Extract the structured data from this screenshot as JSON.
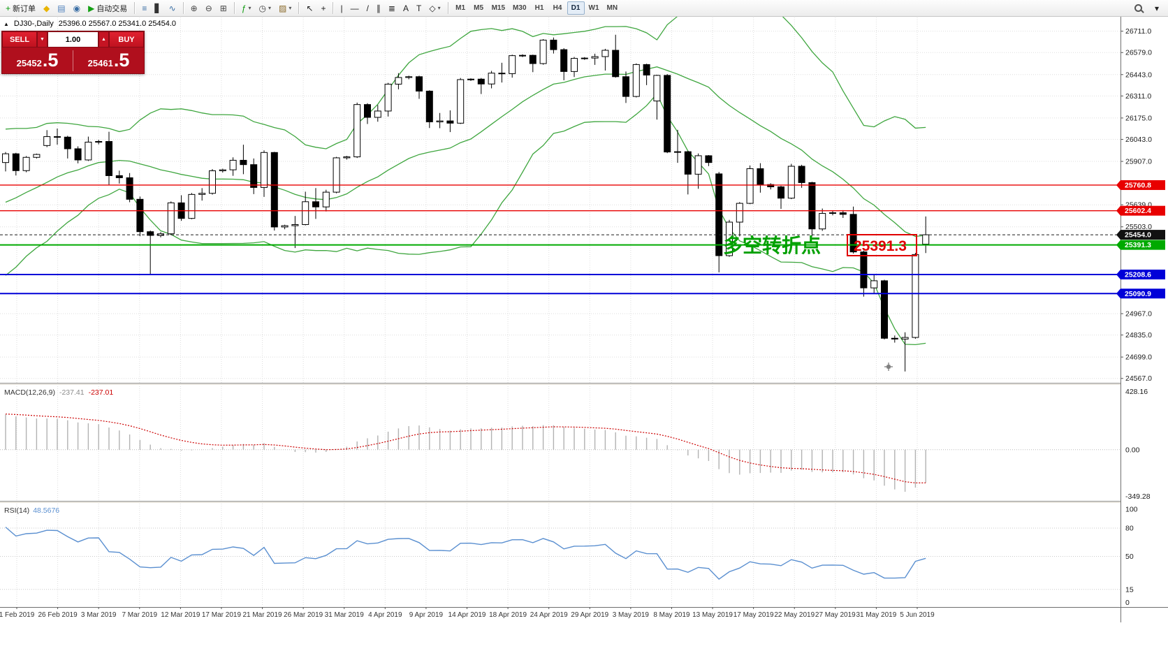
{
  "toolbar": {
    "items": [
      {
        "type": "button",
        "name": "new-order",
        "glyph": "+",
        "color": "#0a9a0a",
        "label": "新订单"
      },
      {
        "type": "button",
        "name": "favorites",
        "glyph": "◆",
        "color": "#e8b400"
      },
      {
        "type": "button",
        "name": "profiles",
        "glyph": "▤",
        "color": "#4a7ebb"
      },
      {
        "type": "button",
        "name": "refresh",
        "glyph": "◉",
        "color": "#3a6ea5"
      },
      {
        "type": "button",
        "name": "autotrading",
        "glyph": "▶",
        "color": "#14a014",
        "label": "自动交易"
      },
      {
        "type": "sep"
      },
      {
        "type": "button",
        "name": "bar-chart-mode",
        "glyph": "≡",
        "color": "#3a6ea5"
      },
      {
        "type": "button",
        "name": "candlestick-mode",
        "glyph": "▋",
        "color": "#333333"
      },
      {
        "type": "button",
        "name": "line-chart-mode",
        "glyph": "∿",
        "color": "#3a6ea5"
      },
      {
        "type": "sep"
      },
      {
        "type": "button",
        "name": "zoom-in",
        "glyph": "⊕",
        "color": "#444444"
      },
      {
        "type": "button",
        "name": "zoom-out",
        "glyph": "⊖",
        "color": "#444444"
      },
      {
        "type": "button",
        "name": "tile-windows",
        "glyph": "⊞",
        "color": "#444444"
      },
      {
        "type": "sep"
      },
      {
        "type": "button",
        "name": "indicators",
        "glyph": "ƒ",
        "color": "#0a9a0a",
        "caret": true
      },
      {
        "type": "button",
        "name": "periods",
        "glyph": "◷",
        "color": "#444444",
        "caret": true
      },
      {
        "type": "button",
        "name": "templates",
        "glyph": "▨",
        "color": "#8a6a2a",
        "caret": true
      },
      {
        "type": "sep"
      },
      {
        "type": "button",
        "name": "cursor",
        "glyph": "↖",
        "color": "#222222"
      },
      {
        "type": "button",
        "name": "crosshair",
        "glyph": "+",
        "color": "#222222"
      },
      {
        "type": "sep"
      },
      {
        "type": "button",
        "name": "vertical-line-tool",
        "glyph": "|",
        "color": "#222222"
      },
      {
        "type": "button",
        "name": "horizontal-line-tool",
        "glyph": "—",
        "color": "#222222"
      },
      {
        "type": "button",
        "name": "trendline-tool",
        "glyph": "/",
        "color": "#222222"
      },
      {
        "type": "button",
        "name": "equidistant-channel-tool",
        "glyph": "∥",
        "color": "#222222"
      },
      {
        "type": "button",
        "name": "fibonacci-tool",
        "glyph": "≣",
        "color": "#222222"
      },
      {
        "type": "button",
        "name": "text-tool",
        "glyph": "A",
        "color": "#222222"
      },
      {
        "type": "button",
        "name": "text-label-tool",
        "glyph": "T",
        "color": "#222222"
      },
      {
        "type": "button",
        "name": "shapes-tool",
        "glyph": "◇",
        "color": "#222222",
        "caret": true
      },
      {
        "type": "sep"
      }
    ],
    "timeframes": [
      "M1",
      "M5",
      "M15",
      "M30",
      "H1",
      "H4",
      "D1",
      "W1",
      "MN"
    ],
    "active_timeframe": "D1",
    "right_items": [
      {
        "name": "search",
        "kind": "magnifier"
      },
      {
        "name": "quick-lists",
        "kind": "glyph",
        "glyph": "▾"
      }
    ]
  },
  "one_click": {
    "collapse_arrow": "▲",
    "sell_label": "SELL",
    "buy_label": "BUY",
    "volume": "1.00",
    "volume_down_glyph": "▼",
    "volume_up_glyph": "▲",
    "sell_price_main": "25452",
    "sell_price_big": ".5",
    "buy_price_main": "25461",
    "buy_price_big": ".5"
  },
  "chart_data": {
    "type": "candlestick",
    "symbol_title": "DJ30-,Daily",
    "ohlc_line": "25396.0 25567.0 25341.0 25454.0",
    "price_axis": {
      "view_max": 26800,
      "view_min": 24540,
      "ticks": [
        26711.0,
        26579.0,
        26443.0,
        26311.0,
        26175.0,
        26043.0,
        25907.0,
        25639.0,
        25503.0,
        24967.0,
        24835.0,
        24699.0,
        24567.0
      ]
    },
    "time_axis": [
      "1 Feb 2019",
      "26 Feb 2019",
      "3 Mar 2019",
      "7 Mar 2019",
      "12 Mar 2019",
      "17 Mar 2019",
      "21 Mar 2019",
      "26 Mar 2019",
      "31 Mar 2019",
      "4 Apr 2019",
      "9 Apr 2019",
      "14 Apr 2019",
      "18 Apr 2019",
      "24 Apr 2019",
      "29 Apr 2019",
      "3 May 2019",
      "8 May 2019",
      "13 May 2019",
      "17 May 2019",
      "22 May 2019",
      "27 May 2019",
      "31 May 2019",
      "5 Jun 2019"
    ],
    "candles": [
      [
        25900,
        25965,
        25845,
        25954
      ],
      [
        25954,
        25960,
        25820,
        25850
      ],
      [
        25850,
        25940,
        25840,
        25932
      ],
      [
        25932,
        25955,
        25925,
        25950
      ],
      [
        26005,
        26100,
        25995,
        26060
      ],
      [
        26060,
        26110,
        26010,
        26057
      ],
      [
        26057,
        26065,
        25925,
        25985
      ],
      [
        25985,
        26000,
        25895,
        25916
      ],
      [
        25916,
        26060,
        25910,
        26026
      ],
      [
        26026,
        26040,
        26012,
        26030
      ],
      [
        26030,
        26090,
        25760,
        25819
      ],
      [
        25819,
        25850,
        25770,
        25806
      ],
      [
        25806,
        25835,
        25655,
        25673
      ],
      [
        25673,
        25690,
        25445,
        25473
      ],
      [
        25473,
        25480,
        25209,
        25450
      ],
      [
        25450,
        25470,
        25438,
        25460
      ],
      [
        25460,
        25660,
        25452,
        25651
      ],
      [
        25651,
        25698,
        25540,
        25555
      ],
      [
        25555,
        25712,
        25550,
        25703
      ],
      [
        25703,
        25742,
        25665,
        25710
      ],
      [
        25710,
        25860,
        25702,
        25849
      ],
      [
        25849,
        25862,
        25838,
        25855
      ],
      [
        25855,
        25932,
        25818,
        25914
      ],
      [
        25914,
        26010,
        25828,
        25887
      ],
      [
        25887,
        25925,
        25705,
        25746
      ],
      [
        25746,
        25975,
        25688,
        25962
      ],
      [
        25962,
        25966,
        25480,
        25502
      ],
      [
        25502,
        25516,
        25488,
        25510
      ],
      [
        25510,
        25570,
        25372,
        25517
      ],
      [
        25517,
        25720,
        25512,
        25658
      ],
      [
        25658,
        25742,
        25552,
        25626
      ],
      [
        25626,
        25732,
        25598,
        25717
      ],
      [
        25717,
        25935,
        25710,
        25929
      ],
      [
        25929,
        25941,
        25918,
        25935
      ],
      [
        25935,
        26270,
        25928,
        26258
      ],
      [
        26258,
        26266,
        26138,
        26179
      ],
      [
        26179,
        26255,
        26152,
        26218
      ],
      [
        26218,
        26392,
        26184,
        26384
      ],
      [
        26384,
        26452,
        26352,
        26425
      ],
      [
        26425,
        26436,
        26414,
        26430
      ],
      [
        26430,
        26436,
        26293,
        26341
      ],
      [
        26341,
        26346,
        26113,
        26151
      ],
      [
        26151,
        26206,
        26112,
        26157
      ],
      [
        26157,
        26222,
        26088,
        26143
      ],
      [
        26143,
        26422,
        26138,
        26412
      ],
      [
        26412,
        26420,
        26404,
        26415
      ],
      [
        26415,
        26422,
        26323,
        26385
      ],
      [
        26385,
        26466,
        26358,
        26452
      ],
      [
        26452,
        26516,
        26394,
        26449
      ],
      [
        26449,
        26566,
        26424,
        26560
      ],
      [
        26560,
        26568,
        26551,
        26562
      ],
      [
        26562,
        26566,
        26458,
        26511
      ],
      [
        26511,
        26662,
        26504,
        26656
      ],
      [
        26656,
        26672,
        26573,
        26597
      ],
      [
        26597,
        26606,
        26408,
        26462
      ],
      [
        26462,
        26552,
        26428,
        26543
      ],
      [
        26543,
        26551,
        26534,
        26545
      ],
      [
        26545,
        26572,
        26503,
        26554
      ],
      [
        26554,
        26602,
        26468,
        26593
      ],
      [
        26593,
        26689,
        26424,
        26430
      ],
      [
        26430,
        26462,
        26268,
        26308
      ],
      [
        26308,
        26512,
        26302,
        26505
      ],
      [
        26505,
        26510,
        26378,
        26440
      ],
      [
        26280,
        26442,
        26165,
        26438
      ],
      [
        26438,
        26446,
        25958,
        25965
      ],
      [
        25965,
        26102,
        25898,
        25967
      ],
      [
        25967,
        25972,
        25703,
        25828
      ],
      [
        25828,
        25956,
        25738,
        25942
      ],
      [
        25942,
        25946,
        25878,
        25900
      ],
      [
        25830,
        25842,
        25222,
        25325
      ],
      [
        25325,
        25546,
        25318,
        25532
      ],
      [
        25532,
        25656,
        25444,
        25648
      ],
      [
        25648,
        25882,
        25643,
        25862
      ],
      [
        25862,
        25896,
        25714,
        25764
      ],
      [
        25764,
        25772,
        25734,
        25750
      ],
      [
        25750,
        25756,
        25614,
        25680
      ],
      [
        25680,
        25892,
        25674,
        25877
      ],
      [
        25877,
        25886,
        25744,
        25776
      ],
      [
        25776,
        25781,
        25444,
        25490
      ],
      [
        25490,
        25616,
        25478,
        25586
      ],
      [
        25586,
        25601,
        25574,
        25590
      ],
      [
        25590,
        25606,
        25558,
        25580
      ],
      [
        25580,
        25628,
        25338,
        25348
      ],
      [
        25348,
        25356,
        25072,
        25126
      ],
      [
        25126,
        25206,
        25088,
        25170
      ],
      [
        25170,
        25176,
        24808,
        24815
      ],
      [
        24815,
        24832,
        24788,
        24810
      ],
      [
        24810,
        24852,
        24610,
        24820
      ],
      [
        24820,
        25342,
        24812,
        25332
      ],
      [
        25396,
        25567,
        25341,
        25454
      ]
    ],
    "offscreen_history_closes": [
      24420,
      24520,
      24480,
      24600,
      24700,
      24660,
      24780,
      24860,
      24820,
      24940,
      25020,
      24980,
      25080,
      25160,
      25120,
      25220,
      25300,
      25260,
      25360,
      25420,
      25380,
      25480,
      25560,
      25520,
      25620,
      25700,
      25660,
      25760,
      25820,
      25780,
      25860,
      25910,
      25870,
      25930,
      25950
    ],
    "hlines": [
      {
        "price": 25760.8,
        "label": "25760.8",
        "color": "#e80000",
        "width": 1.4
      },
      {
        "price": 25602.4,
        "label": "25602.4",
        "color": "#e80000",
        "width": 1.4
      },
      {
        "price": 25391.3,
        "label": "25391.3",
        "color": "#00aa00",
        "width": 2
      },
      {
        "price": 25208.6,
        "label": "25208.6",
        "color": "#0000d8",
        "width": 2
      },
      {
        "price": 25090.9,
        "label": "25090.9",
        "color": "#0000d8",
        "width": 2
      }
    ],
    "current_price": {
      "value": 25454.0,
      "label": "25454.0",
      "color": "#1a1a1a"
    },
    "annotation": {
      "text": "多空转折点",
      "value_text": "25391.3",
      "text_color": "#00a000",
      "value_color": "#e00000"
    },
    "indicators": {
      "bollinger": {
        "period": 20,
        "deviation": 2,
        "color": "#3fa63f"
      },
      "macd": {
        "label": "MACD(12,26,9)",
        "value": "-237.41",
        "signal_value": "-237.01",
        "scale_top": "428.16",
        "scale_zero": "0.00",
        "scale_bottom": "-349.28",
        "hist_color": "#b2b2b2",
        "signal_color": "#cc0000"
      },
      "rsi": {
        "label": "RSI(14)",
        "value": "48.5676",
        "color": "#5a8fd0",
        "levels": [
          100,
          80,
          50,
          15,
          0
        ],
        "level_lines": [
          80,
          50,
          15
        ]
      }
    },
    "style": {
      "bull": "#ffffff",
      "bear": "#000000",
      "wick": "#000000",
      "grid": "#dedede",
      "axis_line": "#6e6e6e",
      "label_color": "#1a1a1a"
    }
  }
}
